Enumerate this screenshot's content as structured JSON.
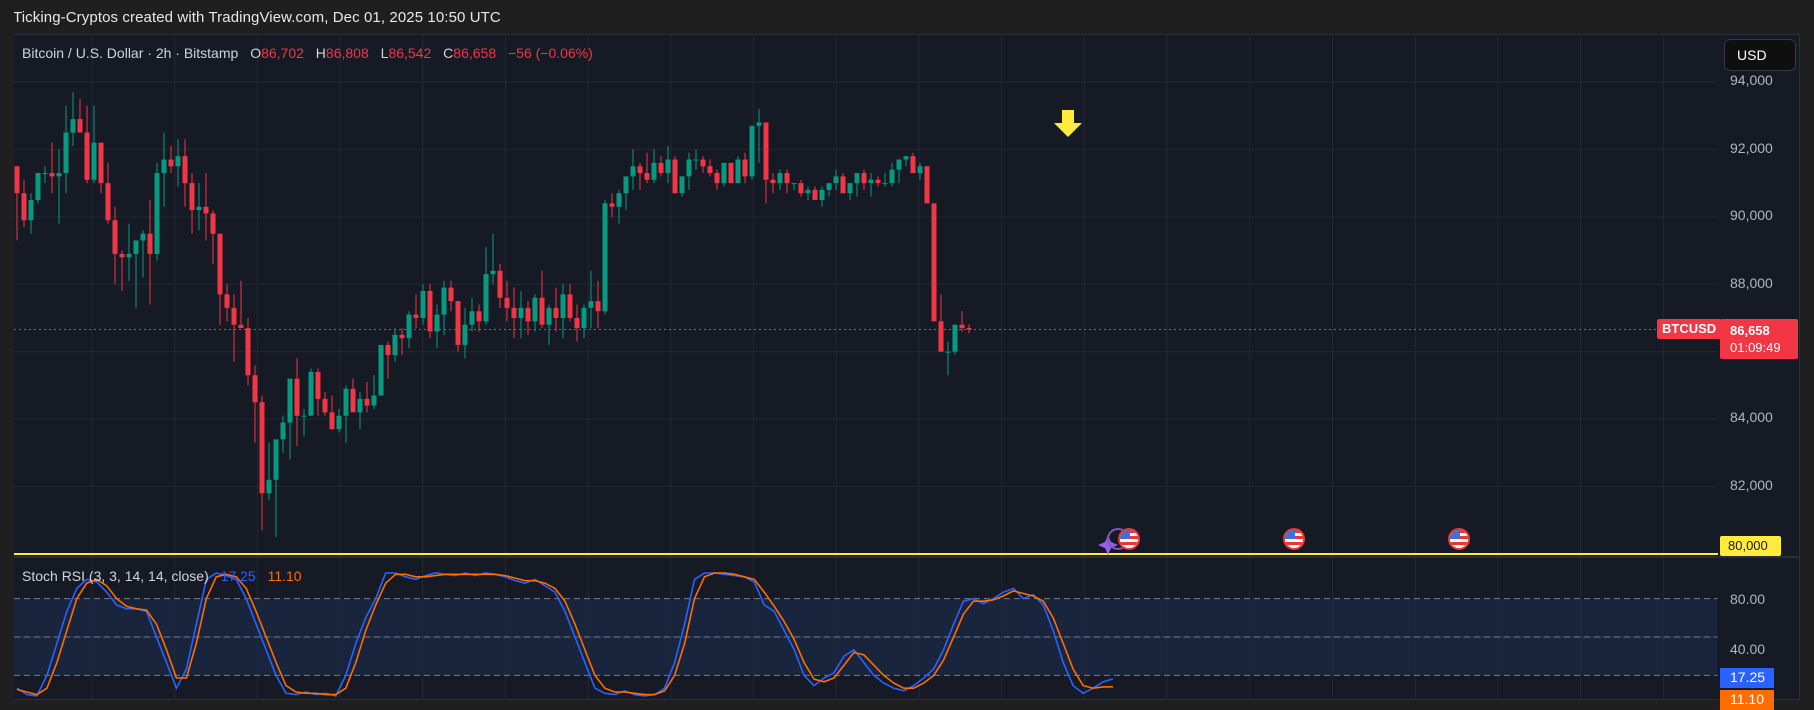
{
  "header": {
    "credit": "Ticking-Cryptos created with TradingView.com, Dec 01, 2025 10:50 UTC"
  },
  "legend": {
    "symbol": "Bitcoin / U.S. Dollar · 2h · Bitstamp",
    "open_label": "O",
    "open": "86,702",
    "high_label": "H",
    "high": "86,808",
    "low_label": "L",
    "low": "86,542",
    "close_label": "C",
    "close": "86,658",
    "change": "−56 (−0.06%)"
  },
  "currency_button": "USD",
  "price_axis": {
    "ticks": [
      "94,000",
      "92,000",
      "90,000",
      "88,000",
      "84,000",
      "82,000"
    ],
    "symbol_tag": "BTCUSD",
    "last_price": "86,658",
    "countdown": "01:09:49",
    "alert_level": "80,000"
  },
  "stoch_rsi": {
    "label": "Stoch RSI (3, 3, 14, 14, close)",
    "k_value": "17.25",
    "d_value": "11.10",
    "ticks": [
      "80.00",
      "40.00"
    ],
    "k_color": "#2962ff",
    "d_color": "#ff6d00"
  },
  "colors": {
    "up": "#089981",
    "down": "#f23645",
    "background": "#161a25",
    "grid": "#242833",
    "alert_line": "#ffeb3b",
    "arrow": "#ffeb3b"
  },
  "annotations": {
    "arrow": "down-arrow above local high before drop",
    "events": [
      "US economic event",
      "US economic event",
      "US economic event"
    ]
  },
  "chart_data": [
    {
      "type": "candlestick",
      "title": "Bitcoin / U.S. Dollar · 2h · Bitstamp",
      "ylabel": "USD",
      "ylim": [
        79500,
        94800
      ],
      "yticks": [
        94000,
        92000,
        90000,
        88000,
        86000,
        84000,
        82000,
        80000
      ],
      "horizontal_line": 80000,
      "last": {
        "open": 86702,
        "high": 86808,
        "low": 86542,
        "close": 86658
      },
      "ohlc": [
        [
          91500,
          91500,
          89300,
          90700
        ],
        [
          90700,
          91100,
          89700,
          89900
        ],
        [
          89900,
          90700,
          89500,
          90500
        ],
        [
          90500,
          91300,
          90400,
          91300
        ],
        [
          91300,
          91500,
          91000,
          91300
        ],
        [
          91300,
          92200,
          90700,
          91200
        ],
        [
          91200,
          92000,
          89800,
          91300
        ],
        [
          91300,
          93300,
          90700,
          92500
        ],
        [
          92500,
          93700,
          92100,
          92900
        ],
        [
          92900,
          93500,
          92600,
          92500
        ],
        [
          92500,
          93300,
          91000,
          91100
        ],
        [
          91100,
          93300,
          91000,
          92200
        ],
        [
          92200,
          92200,
          90700,
          91000
        ],
        [
          91000,
          91600,
          89800,
          89900
        ],
        [
          89900,
          90300,
          88000,
          88900
        ],
        [
          88900,
          89000,
          87800,
          88800
        ],
        [
          88800,
          89800,
          88100,
          88900
        ],
        [
          88900,
          89300,
          87300,
          89300
        ],
        [
          89300,
          89600,
          88200,
          89500
        ],
        [
          89500,
          90500,
          87400,
          88900
        ],
        [
          88900,
          91600,
          88700,
          91300
        ],
        [
          91300,
          92500,
          90300,
          91700
        ],
        [
          91700,
          92100,
          91300,
          91500
        ],
        [
          91500,
          92300,
          90900,
          91800
        ],
        [
          91800,
          92300,
          90300,
          91000
        ],
        [
          91000,
          91300,
          89500,
          90200
        ],
        [
          90200,
          91000,
          89600,
          90300
        ],
        [
          90300,
          91300,
          89300,
          90100
        ],
        [
          90100,
          90200,
          88600,
          89500
        ],
        [
          89500,
          89500,
          86800,
          87700
        ],
        [
          87700,
          88000,
          86900,
          87300
        ],
        [
          87300,
          87700,
          85700,
          86800
        ],
        [
          86800,
          88100,
          86700,
          86700
        ],
        [
          86700,
          87000,
          85000,
          85300
        ],
        [
          85300,
          85600,
          83300,
          84500
        ],
        [
          84500,
          84700,
          80700,
          81800
        ],
        [
          81800,
          83300,
          81600,
          82200
        ],
        [
          82200,
          83000,
          80500,
          83400
        ],
        [
          83400,
          84100,
          83000,
          83900
        ],
        [
          83900,
          84600,
          82800,
          85200
        ],
        [
          85200,
          85800,
          83200,
          84100
        ],
        [
          84100,
          84300,
          83500,
          84100
        ],
        [
          84100,
          85500,
          84100,
          85400
        ],
        [
          85400,
          85500,
          84100,
          84600
        ],
        [
          84600,
          84800,
          84100,
          84200
        ],
        [
          84200,
          84700,
          83700,
          83700
        ],
        [
          83700,
          84300,
          83600,
          84100
        ],
        [
          84100,
          85000,
          83300,
          84900
        ],
        [
          84900,
          85200,
          84400,
          84200
        ],
        [
          84200,
          84800,
          83700,
          84600
        ],
        [
          84600,
          85100,
          84200,
          84400
        ],
        [
          84400,
          85300,
          84300,
          84700
        ],
        [
          84700,
          86200,
          84700,
          86200
        ],
        [
          86200,
          86300,
          85200,
          85900
        ],
        [
          85900,
          86700,
          85700,
          86500
        ],
        [
          86500,
          86700,
          85900,
          86400
        ],
        [
          86400,
          87200,
          86100,
          87100
        ],
        [
          87100,
          87700,
          86700,
          87000
        ],
        [
          87000,
          88000,
          86800,
          87800
        ],
        [
          87800,
          88000,
          86400,
          86600
        ],
        [
          86600,
          87400,
          86100,
          87100
        ],
        [
          87100,
          88100,
          86500,
          87900
        ],
        [
          87900,
          88100,
          87200,
          87500
        ],
        [
          87500,
          87500,
          86000,
          86200
        ],
        [
          86200,
          87300,
          85800,
          86800
        ],
        [
          86800,
          87600,
          86600,
          87200
        ],
        [
          87200,
          87400,
          86600,
          86900
        ],
        [
          86900,
          89100,
          86800,
          88300
        ],
        [
          88300,
          89500,
          88000,
          88400
        ],
        [
          88400,
          88600,
          87300,
          87600
        ],
        [
          87600,
          88100,
          86900,
          87300
        ],
        [
          87300,
          87900,
          86400,
          87000
        ],
        [
          87000,
          87800,
          86400,
          87300
        ],
        [
          87300,
          87500,
          86500,
          86900
        ],
        [
          86900,
          87700,
          86600,
          87600
        ],
        [
          87600,
          88400,
          86700,
          86800
        ],
        [
          86800,
          87400,
          86200,
          87300
        ],
        [
          87300,
          87900,
          86600,
          87000
        ],
        [
          87000,
          88000,
          86400,
          87700
        ],
        [
          87700,
          88000,
          86900,
          87000
        ],
        [
          87000,
          87400,
          86300,
          86700
        ],
        [
          86700,
          87400,
          86400,
          87300
        ],
        [
          87300,
          88400,
          86700,
          87500
        ],
        [
          87500,
          88100,
          86700,
          87200
        ],
        [
          87200,
          90500,
          87100,
          90400
        ],
        [
          90400,
          90700,
          90000,
          90300
        ],
        [
          90300,
          90800,
          89800,
          90700
        ],
        [
          90700,
          91100,
          90200,
          91200
        ],
        [
          91200,
          92000,
          90800,
          91500
        ],
        [
          91500,
          91600,
          90800,
          91300
        ],
        [
          91300,
          91900,
          91000,
          91100
        ],
        [
          91100,
          92000,
          91000,
          91600
        ],
        [
          91600,
          91800,
          91200,
          91300
        ],
        [
          91300,
          92100,
          91000,
          91700
        ],
        [
          91700,
          91800,
          90700,
          90700
        ],
        [
          90700,
          91200,
          90600,
          91200
        ],
        [
          91200,
          91900,
          90800,
          91700
        ],
        [
          91700,
          92000,
          91400,
          91700
        ],
        [
          91700,
          91800,
          91300,
          91500
        ],
        [
          91500,
          91700,
          91200,
          91300
        ],
        [
          91300,
          91400,
          90800,
          91000
        ],
        [
          91000,
          91600,
          90900,
          91600
        ],
        [
          91600,
          91600,
          91000,
          91000
        ],
        [
          91000,
          91800,
          91000,
          91700
        ],
        [
          91700,
          91900,
          91000,
          91200
        ],
        [
          91200,
          92600,
          91100,
          92700
        ],
        [
          92700,
          93200,
          91600,
          92800
        ],
        [
          92800,
          92800,
          90400,
          91100
        ],
        [
          91100,
          91300,
          90700,
          91000
        ],
        [
          91000,
          91400,
          90800,
          91300
        ],
        [
          91300,
          91400,
          90700,
          91000
        ],
        [
          91000,
          91000,
          90800,
          91000
        ],
        [
          91000,
          91100,
          90600,
          90700
        ],
        [
          90700,
          90900,
          90500,
          90800
        ],
        [
          90800,
          90900,
          90600,
          90500
        ],
        [
          90500,
          90900,
          90300,
          90800
        ],
        [
          90800,
          90900,
          90600,
          91000
        ],
        [
          91000,
          91400,
          90800,
          91200
        ],
        [
          91200,
          91300,
          90800,
          90700
        ],
        [
          90700,
          91000,
          90500,
          91000
        ],
        [
          91000,
          91200,
          90600,
          91300
        ],
        [
          91300,
          91400,
          90800,
          91000
        ],
        [
          91000,
          91300,
          90600,
          91100
        ],
        [
          91100,
          91200,
          90900,
          91000
        ],
        [
          91000,
          91300,
          90900,
          91000
        ],
        [
          91000,
          91600,
          90900,
          91400
        ],
        [
          91400,
          91700,
          91000,
          91700
        ],
        [
          91700,
          91800,
          91500,
          91800
        ],
        [
          91800,
          91900,
          91300,
          91300
        ],
        [
          91300,
          91600,
          91100,
          91500
        ],
        [
          91500,
          91500,
          90800,
          90400
        ],
        [
          90400,
          90400,
          86900,
          86900
        ],
        [
          86900,
          87700,
          86200,
          86000
        ],
        [
          86000,
          86300,
          85300,
          86000
        ],
        [
          86000,
          86800,
          85900,
          86800
        ],
        [
          86800,
          87200,
          86600,
          86700
        ],
        [
          86702,
          86808,
          86542,
          86658
        ]
      ]
    },
    {
      "type": "line",
      "title": "Stoch RSI (3, 3, 14, 14, close)",
      "ylim": [
        0,
        100
      ],
      "bands": [
        80,
        50,
        20
      ],
      "series": [
        {
          "name": "K",
          "color": "#2962ff",
          "last": 17.25,
          "values": [
            10,
            5,
            4,
            20,
            45,
            70,
            88,
            95,
            93,
            85,
            75,
            72,
            72,
            70,
            50,
            30,
            10,
            25,
            60,
            95,
            100,
            98,
            95,
            80,
            60,
            40,
            20,
            6,
            5,
            7,
            5,
            6,
            4,
            20,
            45,
            65,
            80,
            100,
            100,
            97,
            95,
            98,
            100,
            99,
            98,
            100,
            98,
            100,
            99,
            97,
            94,
            92,
            95,
            90,
            85,
            70,
            50,
            30,
            10,
            6,
            5,
            8,
            5,
            4,
            5,
            10,
            30,
            60,
            95,
            100,
            100,
            99,
            98,
            97,
            93,
            75,
            70,
            55,
            40,
            20,
            12,
            18,
            22,
            35,
            40,
            30,
            20,
            14,
            10,
            8,
            12,
            18,
            25,
            40,
            60,
            78,
            80,
            76,
            80,
            85,
            88,
            80,
            83,
            75,
            55,
            30,
            12,
            6,
            10,
            15,
            17.25
          ]
        },
        {
          "name": "D",
          "color": "#ff6d00",
          "last": 11.1,
          "values": [
            9,
            7,
            5,
            10,
            30,
            55,
            80,
            92,
            95,
            90,
            80,
            74,
            72,
            71,
            60,
            40,
            18,
            18,
            45,
            80,
            97,
            99,
            97,
            88,
            70,
            50,
            30,
            12,
            7,
            6,
            6,
            5,
            5,
            10,
            30,
            55,
            75,
            92,
            99,
            99,
            97,
            97,
            98,
            99,
            99,
            99,
            99,
            99,
            99,
            98,
            96,
            94,
            94,
            92,
            88,
            78,
            60,
            40,
            20,
            10,
            7,
            7,
            6,
            5,
            5,
            8,
            20,
            45,
            80,
            97,
            100,
            100,
            99,
            97,
            95,
            85,
            74,
            62,
            48,
            30,
            17,
            15,
            18,
            28,
            38,
            36,
            28,
            20,
            14,
            10,
            10,
            14,
            20,
            32,
            50,
            68,
            78,
            78,
            79,
            82,
            86,
            84,
            82,
            78,
            65,
            45,
            25,
            12,
            10,
            11,
            11.1
          ]
        }
      ]
    }
  ]
}
